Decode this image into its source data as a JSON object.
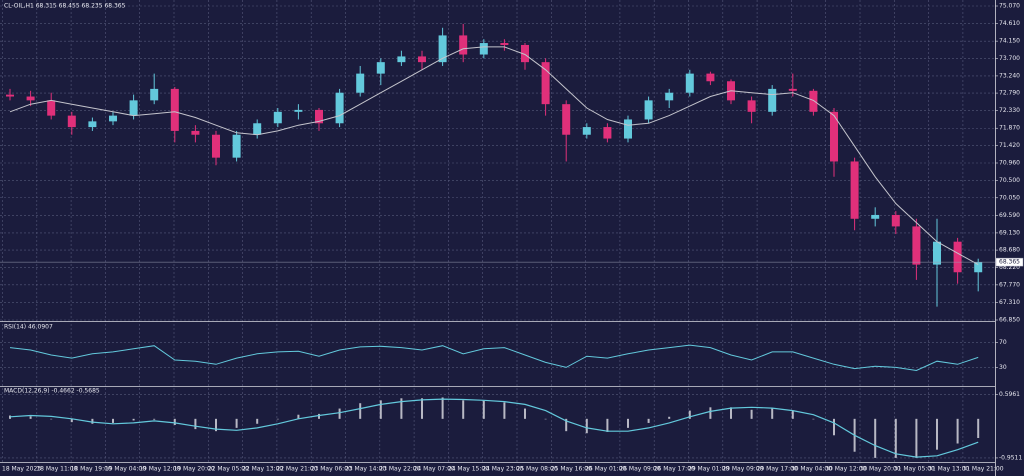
{
  "chart_data": [
    {
      "type": "candlestick",
      "title": "CL-OIL,H1  68.315 68.455 68.235 68.365",
      "open": [
        72.75,
        72.7,
        72.6,
        72.2,
        71.9,
        72.05,
        72.2,
        72.6,
        72.9,
        71.8,
        71.7,
        71.1,
        71.7,
        72.0,
        72.3,
        72.35,
        72.0,
        72.8,
        73.3,
        73.6,
        73.75,
        73.6,
        74.3,
        73.8,
        74.1,
        74.05,
        73.6,
        72.5,
        71.7,
        71.9,
        71.6,
        72.1,
        72.6,
        72.8,
        73.3,
        73.1,
        72.6,
        72.3,
        72.9,
        72.85,
        72.3,
        71.0,
        69.5,
        69.6,
        69.3,
        68.3,
        68.9,
        68.1
      ],
      "high": [
        72.9,
        72.85,
        72.8,
        72.3,
        72.15,
        72.3,
        72.75,
        73.3,
        72.95,
        71.95,
        71.8,
        71.8,
        72.1,
        72.4,
        72.5,
        72.4,
        72.9,
        73.5,
        73.7,
        73.9,
        73.9,
        74.5,
        74.6,
        74.2,
        74.2,
        74.1,
        73.7,
        72.6,
        72.0,
        72.0,
        72.2,
        72.7,
        72.9,
        73.4,
        73.35,
        73.15,
        72.7,
        73.0,
        73.3,
        72.9,
        72.4,
        71.1,
        69.8,
        69.7,
        69.5,
        69.5,
        69.0,
        68.455
      ],
      "low": [
        72.6,
        72.45,
        72.1,
        71.7,
        71.8,
        71.95,
        72.1,
        72.5,
        71.5,
        71.5,
        70.9,
        71.0,
        71.6,
        71.9,
        72.1,
        71.8,
        71.9,
        72.7,
        73.0,
        73.5,
        73.4,
        73.5,
        73.6,
        73.7,
        73.9,
        73.4,
        72.2,
        71.0,
        71.6,
        71.5,
        71.5,
        72.0,
        72.4,
        72.7,
        73.0,
        72.5,
        72.0,
        72.2,
        72.7,
        72.2,
        70.6,
        69.2,
        69.3,
        69.1,
        67.9,
        67.2,
        67.8,
        67.6
      ],
      "close": [
        72.7,
        72.6,
        72.2,
        71.9,
        72.05,
        72.2,
        72.6,
        72.9,
        71.8,
        71.7,
        71.1,
        71.7,
        72.0,
        72.3,
        72.35,
        72.0,
        72.8,
        73.3,
        73.6,
        73.75,
        73.6,
        74.3,
        73.8,
        74.1,
        74.05,
        73.6,
        72.5,
        71.7,
        71.9,
        71.6,
        72.1,
        72.6,
        72.8,
        73.3,
        73.1,
        72.6,
        72.3,
        72.9,
        72.85,
        72.3,
        71.0,
        69.5,
        69.6,
        69.3,
        68.3,
        68.9,
        68.1,
        68.365
      ],
      "up_color": "#63c9dc",
      "down_color": "#e0307a",
      "ma": {
        "color": "#c4c4cc",
        "values": [
          72.3,
          72.5,
          72.6,
          72.5,
          72.4,
          72.3,
          72.2,
          72.25,
          72.3,
          72.15,
          71.95,
          71.75,
          71.7,
          71.8,
          71.95,
          72.05,
          72.2,
          72.5,
          72.8,
          73.1,
          73.4,
          73.7,
          73.95,
          74.0,
          74.0,
          73.8,
          73.4,
          72.9,
          72.4,
          72.1,
          71.95,
          72.0,
          72.2,
          72.45,
          72.7,
          72.85,
          72.8,
          72.75,
          72.8,
          72.6,
          72.2,
          71.4,
          70.6,
          69.9,
          69.4,
          68.9,
          68.6,
          68.3
        ]
      },
      "ylim": [
        66.85,
        75.07
      ],
      "yticks": [
        {
          "value": 75.07,
          "label": "75.070"
        },
        {
          "value": 74.61,
          "label": "74.610"
        },
        {
          "value": 74.15,
          "label": "74.150"
        },
        {
          "value": 73.7,
          "label": "73.700"
        },
        {
          "value": 73.24,
          "label": "73.240"
        },
        {
          "value": 72.79,
          "label": "72.790"
        },
        {
          "value": 72.33,
          "label": "72.330"
        },
        {
          "value": 71.87,
          "label": "71.870"
        },
        {
          "value": 71.42,
          "label": "71.420"
        },
        {
          "value": 70.96,
          "label": "70.960"
        },
        {
          "value": 70.5,
          "label": "70.500"
        },
        {
          "value": 70.05,
          "label": "70.050"
        },
        {
          "value": 69.59,
          "label": "69.590"
        },
        {
          "value": 69.13,
          "label": "69.130"
        },
        {
          "value": 68.68,
          "label": "68.680"
        },
        {
          "value": 68.22,
          "label": "68.220"
        },
        {
          "value": 67.77,
          "label": "67.770"
        },
        {
          "value": 67.31,
          "label": "67.310"
        },
        {
          "value": 66.85,
          "label": "66.850"
        }
      ],
      "last_price": {
        "value": 68.365,
        "label": "68.365"
      },
      "grid": true
    },
    {
      "type": "line",
      "title": "RSI(14) 46.0907",
      "values": [
        62,
        58,
        50,
        45,
        52,
        55,
        60,
        65,
        42,
        40,
        35,
        45,
        52,
        55,
        56,
        48,
        58,
        63,
        64,
        62,
        58,
        65,
        52,
        60,
        62,
        50,
        38,
        30,
        48,
        45,
        52,
        58,
        62,
        66,
        62,
        50,
        42,
        55,
        55,
        45,
        35,
        28,
        32,
        30,
        25,
        40,
        35,
        46.0907
      ],
      "color": "#63c9dc",
      "ylim": [
        0,
        100
      ],
      "yticks": [
        70,
        30
      ],
      "grid": true
    },
    {
      "type": "macd",
      "title": "MACD(12,26,9) -0.4662 -0.5685",
      "histogram": [
        0.08,
        0.06,
        0.0,
        -0.08,
        -0.12,
        -0.1,
        -0.04,
        -0.02,
        -0.15,
        -0.25,
        -0.3,
        -0.22,
        -0.12,
        0.0,
        0.1,
        0.12,
        0.25,
        0.38,
        0.45,
        0.5,
        0.5,
        0.52,
        0.45,
        0.44,
        0.4,
        0.25,
        0.0,
        -0.3,
        -0.35,
        -0.32,
        -0.22,
        -0.1,
        0.05,
        0.2,
        0.28,
        0.28,
        0.22,
        0.25,
        0.2,
        0.0,
        -0.4,
        -0.8,
        -0.95,
        -0.95,
        -0.95,
        -0.75,
        -0.6,
        -0.4662
      ],
      "histogram_color": "#b8b8c4",
      "signal": [
        0.05,
        0.08,
        0.06,
        0.0,
        -0.08,
        -0.12,
        -0.1,
        -0.05,
        -0.1,
        -0.18,
        -0.25,
        -0.28,
        -0.22,
        -0.12,
        0.0,
        0.08,
        0.15,
        0.25,
        0.35,
        0.42,
        0.46,
        0.48,
        0.47,
        0.45,
        0.42,
        0.35,
        0.2,
        -0.05,
        -0.22,
        -0.3,
        -0.3,
        -0.22,
        -0.1,
        0.05,
        0.18,
        0.26,
        0.28,
        0.26,
        0.2,
        0.1,
        -0.1,
        -0.4,
        -0.65,
        -0.85,
        -0.93,
        -0.9,
        -0.75,
        -0.5685
      ],
      "signal_color": "#63c9dc",
      "ylim": [
        -1.05,
        0.75
      ],
      "yticks": [
        0.5961,
        -0.9511
      ],
      "grid": true,
      "x_labels": [
        "18 May 2023",
        "18 May 11:00",
        "18 May 19:00",
        "19 May 04:00",
        "19 May 12:00",
        "19 May 20:00",
        "22 May 05:00",
        "22 May 13:00",
        "22 May 21:00",
        "23 May 06:00",
        "23 May 14:00",
        "23 May 22:00",
        "24 May 07:00",
        "24 May 15:00",
        "24 May 23:00",
        "25 May 08:00",
        "25 May 16:00",
        "26 May 01:00",
        "26 May 09:00",
        "26 May 17:00",
        "29 May 01:00",
        "29 May 09:00",
        "29 May 17:00",
        "30 May 04:00",
        "30 May 12:00",
        "30 May 20:00",
        "31 May 05:00",
        "31 May 13:00",
        "31 May 21:00"
      ]
    }
  ]
}
